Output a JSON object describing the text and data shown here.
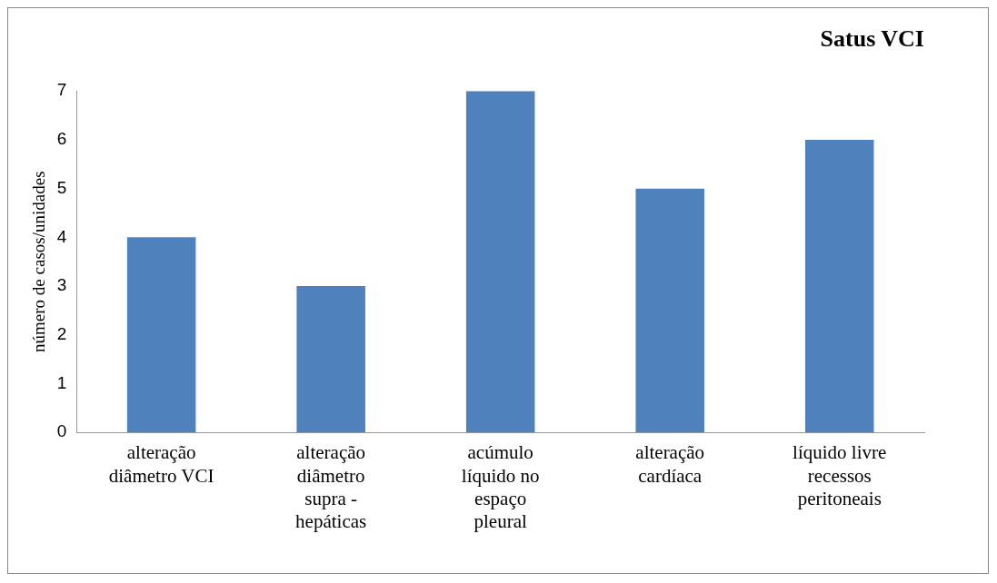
{
  "chart_data": {
    "type": "bar",
    "title": "Satus VCI",
    "ylabel": "número de casos/unidades",
    "categories": [
      "alteração diâmetro VCI",
      "alteração diâmetro supra - hepáticas",
      "acúmulo líquido no espaço pleural",
      "alteração cardíaca",
      "líquido livre recessos peritoneais"
    ],
    "values": [
      4,
      3,
      7,
      5,
      6
    ],
    "color": "#4f81bd",
    "ylim": [
      0,
      7
    ],
    "yticks": [
      0,
      1,
      2,
      3,
      4,
      5,
      6,
      7
    ],
    "grid": false,
    "legend": false
  }
}
